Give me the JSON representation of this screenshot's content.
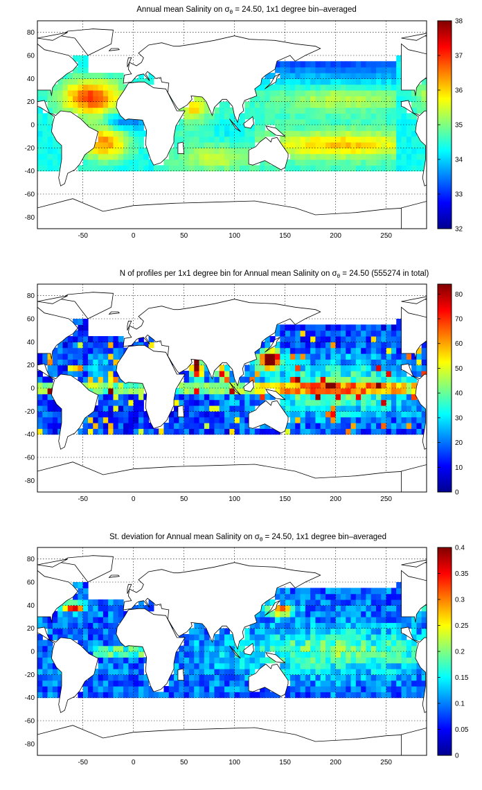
{
  "colors": {
    "jet": [
      "#00008f",
      "#0000ff",
      "#0080ff",
      "#00ffff",
      "#80ff80",
      "#ffff00",
      "#ff8000",
      "#ff0000",
      "#800000"
    ],
    "land": "#ffffff",
    "coast": "#000000",
    "nodata": "#ffffff"
  },
  "axes": {
    "x_ticks": [
      "-50",
      "0",
      "50",
      "100",
      "150",
      "200",
      "250"
    ],
    "y_ticks": [
      "80",
      "60",
      "40",
      "20",
      "0",
      "-20",
      "-40",
      "-60",
      "-80"
    ],
    "x_range": [
      -95,
      290
    ],
    "y_range": [
      -90,
      90
    ],
    "grid": "dotted"
  },
  "panels": [
    {
      "id": "mean",
      "title_pre": "Annual mean Salinity on ",
      "title_sym": "σ",
      "title_sub": "θ",
      "title_post": " = 24.50, 1x1 degree bin–averaged",
      "cb_ticks": [
        "38",
        "37",
        "36",
        "35",
        "34",
        "33",
        "32"
      ],
      "cb_range": [
        32,
        38
      ]
    },
    {
      "id": "count",
      "title_pre": "N of profiles per 1x1 degree bin for Annual mean Salinity on ",
      "title_sym": "σ",
      "title_sub": "θ",
      "title_post": " = 24.50 (555274 in total)",
      "cb_ticks": [
        "80",
        "70",
        "60",
        "50",
        "40",
        "30",
        "20",
        "10",
        "0"
      ],
      "cb_range": [
        0,
        84
      ]
    },
    {
      "id": "std",
      "title_pre": "St. deviation for Annual mean Salinity on ",
      "title_sym": "σ",
      "title_sub": "θ",
      "title_post": " = 24.50, 1x1 degree bin–averaged",
      "cb_ticks": [
        "0.4",
        "0.35",
        "0.3",
        "0.25",
        "0.2",
        "0.15",
        "0.1",
        "0.05",
        "0"
      ],
      "cb_range": [
        0,
        0.4
      ]
    }
  ]
}
